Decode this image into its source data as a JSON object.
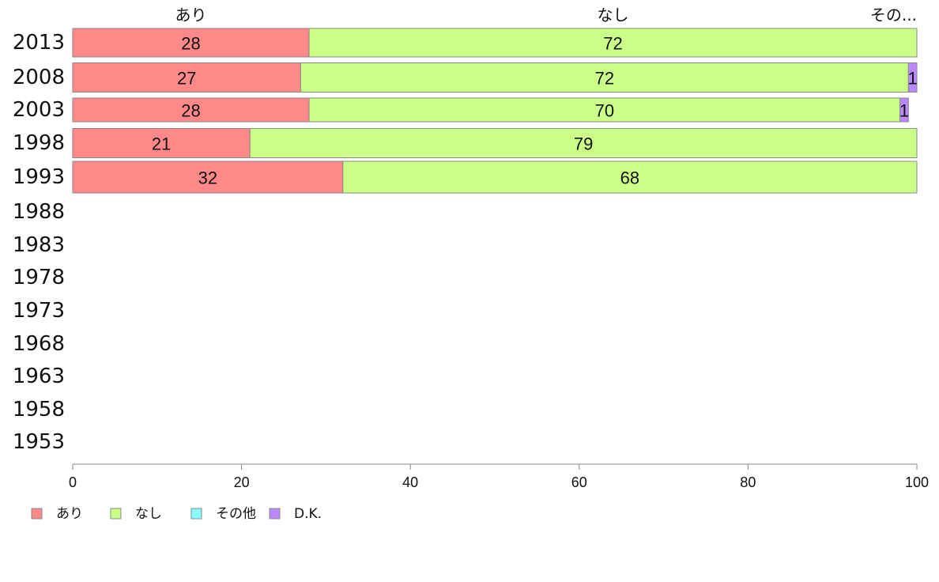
{
  "chart_data": {
    "type": "bar",
    "orientation": "horizontal",
    "stacked": true,
    "categories": [
      "2013",
      "2008",
      "2003",
      "1998",
      "1993",
      "1988",
      "1983",
      "1978",
      "1973",
      "1968",
      "1963",
      "1958",
      "1953"
    ],
    "series": [
      {
        "name": "あり",
        "color": "#ff8888",
        "values": [
          28,
          27,
          28,
          21,
          32,
          null,
          null,
          null,
          null,
          null,
          null,
          null,
          null
        ]
      },
      {
        "name": "なし",
        "color": "#ccff88",
        "values": [
          72,
          72,
          70,
          79,
          68,
          null,
          null,
          null,
          null,
          null,
          null,
          null,
          null
        ]
      },
      {
        "name": "その他",
        "color": "#88ffff",
        "values": [
          0,
          0,
          0,
          0,
          0,
          null,
          null,
          null,
          null,
          null,
          null,
          null,
          null
        ]
      },
      {
        "name": "D.K.",
        "color": "#bb88ff",
        "values": [
          0,
          1,
          1,
          0,
          0,
          null,
          null,
          null,
          null,
          null,
          null,
          null,
          null
        ]
      }
    ],
    "top_category_labels": [
      "あり",
      "なし",
      "その..."
    ],
    "xlim": [
      0,
      100
    ],
    "xticks": [
      0,
      20,
      40,
      60,
      80,
      100
    ],
    "grid": false,
    "legend_position": "bottom-left"
  }
}
